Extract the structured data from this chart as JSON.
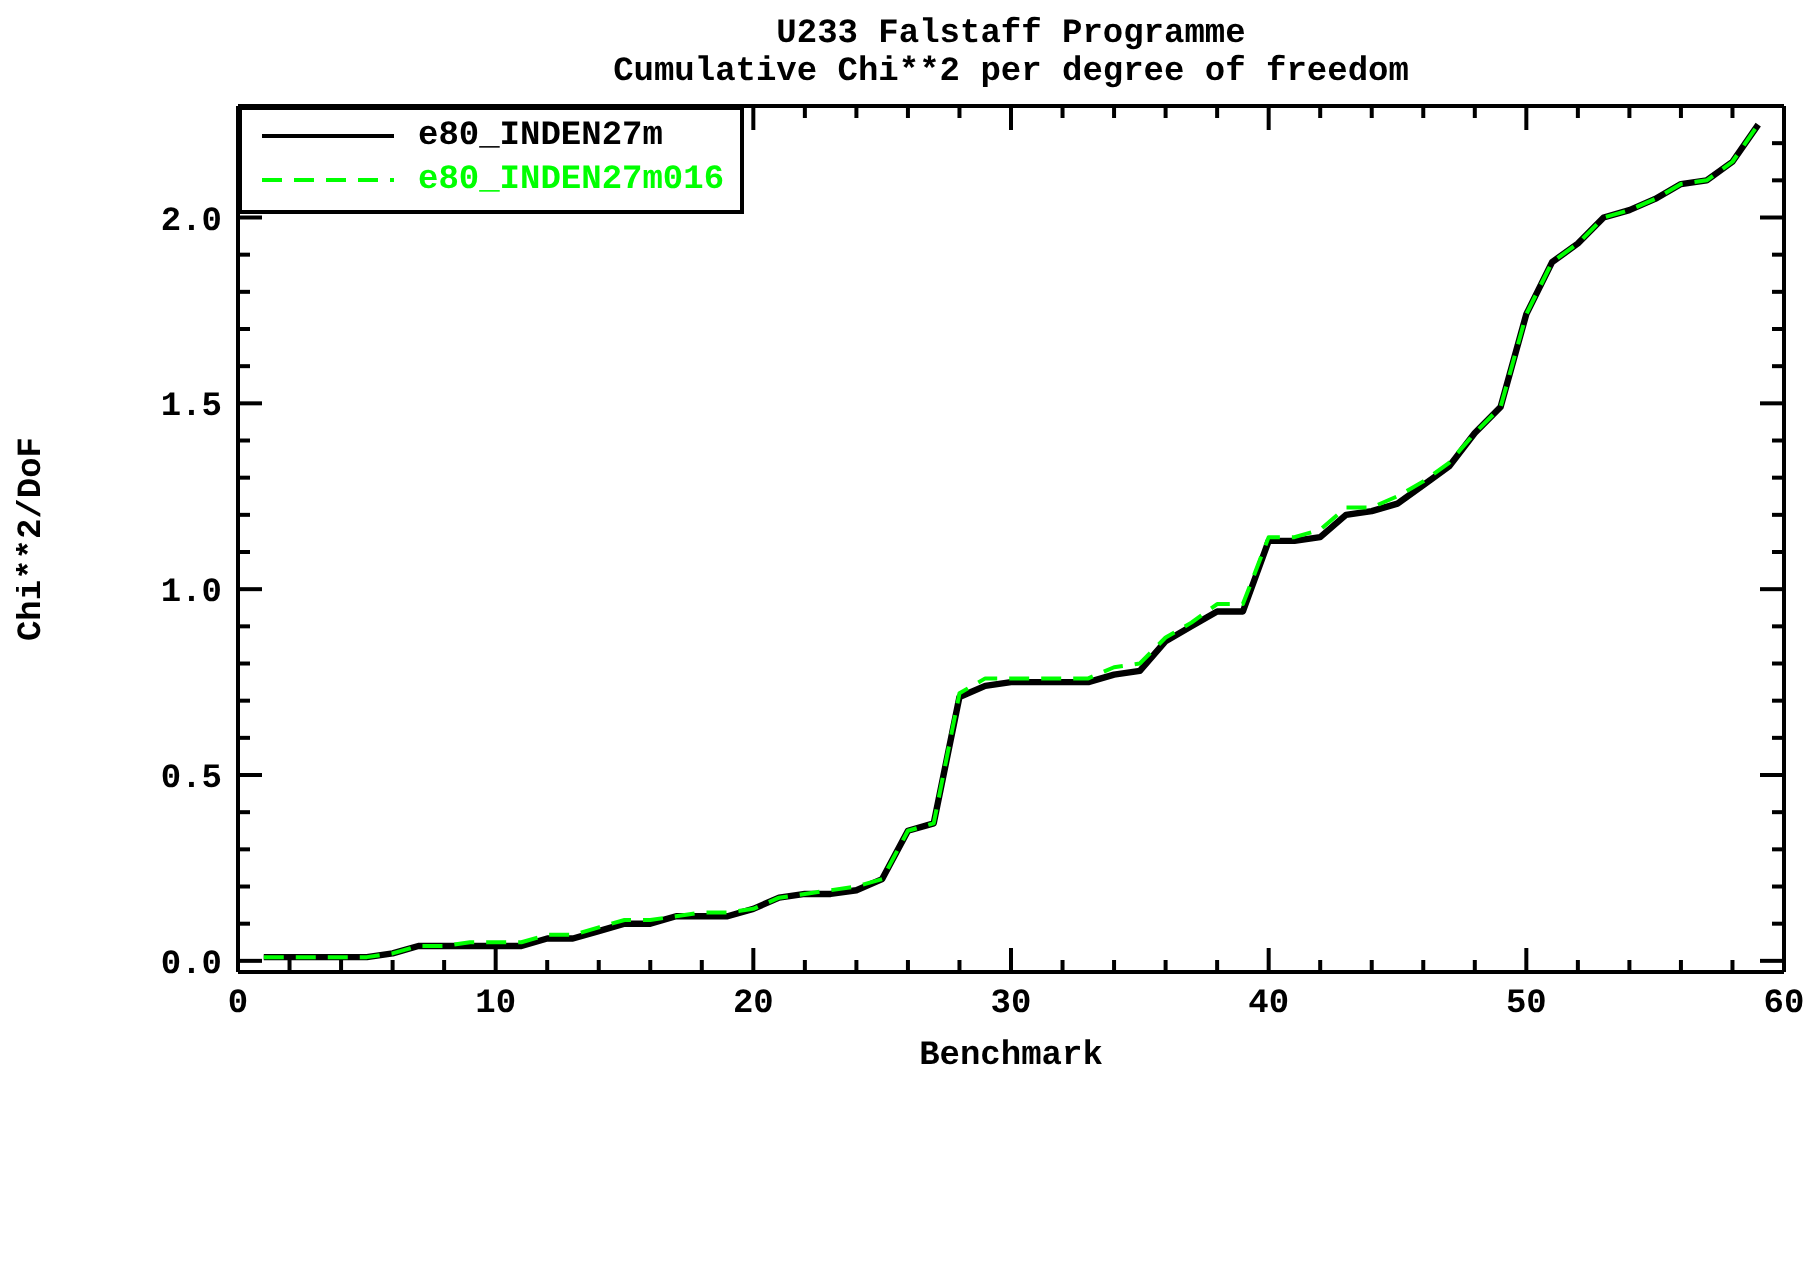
{
  "chart_data": {
    "type": "line",
    "title": "U233 Falstaff Programme",
    "subtitle": "Cumulative Chi**2 per degree of freedom",
    "xlabel": "Benchmark",
    "ylabel": "Chi**2/DoF",
    "x": [
      1,
      2,
      3,
      4,
      5,
      6,
      7,
      8,
      9,
      10,
      11,
      12,
      13,
      14,
      15,
      16,
      17,
      18,
      19,
      20,
      21,
      22,
      23,
      24,
      25,
      26,
      27,
      28,
      29,
      30,
      31,
      32,
      33,
      34,
      35,
      36,
      37,
      38,
      39,
      40,
      41,
      42,
      43,
      44,
      45,
      46,
      47,
      48,
      49,
      50,
      51,
      52,
      53,
      54,
      55,
      56,
      57,
      58,
      59
    ],
    "series": [
      {
        "name": "e80_INDEN27m",
        "color": "#000000",
        "line_style": "solid",
        "values": [
          0.01,
          0.01,
          0.01,
          0.01,
          0.01,
          0.02,
          0.04,
          0.04,
          0.04,
          0.04,
          0.04,
          0.06,
          0.06,
          0.08,
          0.1,
          0.1,
          0.12,
          0.12,
          0.12,
          0.14,
          0.17,
          0.18,
          0.18,
          0.19,
          0.22,
          0.35,
          0.37,
          0.71,
          0.74,
          0.75,
          0.75,
          0.75,
          0.75,
          0.77,
          0.78,
          0.86,
          0.9,
          0.94,
          0.94,
          1.13,
          1.13,
          1.14,
          1.2,
          1.21,
          1.23,
          1.28,
          1.33,
          1.42,
          1.49,
          1.74,
          1.88,
          1.93,
          2.0,
          2.02,
          2.05,
          2.09,
          2.1,
          2.15,
          2.25
        ]
      },
      {
        "name": "e80_INDEN27m016",
        "color": "#00ff00",
        "line_style": "dashed",
        "values": [
          0.01,
          0.01,
          0.01,
          0.01,
          0.01,
          0.02,
          0.04,
          0.04,
          0.05,
          0.05,
          0.05,
          0.07,
          0.07,
          0.09,
          0.11,
          0.11,
          0.12,
          0.13,
          0.13,
          0.14,
          0.17,
          0.18,
          0.19,
          0.2,
          0.22,
          0.35,
          0.37,
          0.72,
          0.76,
          0.76,
          0.76,
          0.76,
          0.76,
          0.79,
          0.8,
          0.87,
          0.91,
          0.96,
          0.96,
          1.14,
          1.14,
          1.16,
          1.22,
          1.22,
          1.25,
          1.29,
          1.34,
          1.42,
          1.49,
          1.74,
          1.88,
          1.93,
          2.0,
          2.02,
          2.05,
          2.09,
          2.1,
          2.15,
          2.25
        ]
      }
    ],
    "xlim": [
      0,
      60
    ],
    "ylim": [
      -0.03,
      2.3
    ],
    "xticks": [
      0,
      {
        "value": 2,
        "label": null
      },
      {
        "value": 4,
        "label": null
      },
      {
        "value": 6,
        "label": null
      },
      {
        "value": 8,
        "label": null
      },
      10,
      {
        "value": 12,
        "label": null
      },
      {
        "value": 14,
        "label": null
      },
      {
        "value": 16,
        "label": null
      },
      {
        "value": 18,
        "label": null
      },
      20,
      {
        "value": 22,
        "label": null
      },
      {
        "value": 24,
        "label": null
      },
      {
        "value": 26,
        "label": null
      },
      {
        "value": 28,
        "label": null
      },
      30,
      {
        "value": 32,
        "label": null
      },
      {
        "value": 34,
        "label": null
      },
      {
        "value": 36,
        "label": null
      },
      {
        "value": 38,
        "label": null
      },
      40,
      {
        "value": 42,
        "label": null
      },
      {
        "value": 44,
        "label": null
      },
      {
        "value": 46,
        "label": null
      },
      {
        "value": 48,
        "label": null
      },
      50,
      {
        "value": 52,
        "label": null
      },
      {
        "value": 54,
        "label": null
      },
      {
        "value": 56,
        "label": null
      },
      {
        "value": 58,
        "label": null
      },
      60
    ],
    "yticks": [
      {
        "value": 0,
        "label": "0.0"
      },
      {
        "value": 0.1,
        "label": null
      },
      {
        "value": 0.2,
        "label": null
      },
      {
        "value": 0.3,
        "label": null
      },
      {
        "value": 0.4,
        "label": null
      },
      {
        "value": 0.5,
        "label": "0.5"
      },
      {
        "value": 0.6,
        "label": null
      },
      {
        "value": 0.7,
        "label": null
      },
      {
        "value": 0.8,
        "label": null
      },
      {
        "value": 0.9,
        "label": null
      },
      {
        "value": 1,
        "label": "1.0"
      },
      {
        "value": 1.1,
        "label": null
      },
      {
        "value": 1.2,
        "label": null
      },
      {
        "value": 1.3,
        "label": null
      },
      {
        "value": 1.4,
        "label": null
      },
      {
        "value": 1.5,
        "label": "1.5"
      },
      {
        "value": 1.6,
        "label": null
      },
      {
        "value": 1.7,
        "label": null
      },
      {
        "value": 1.8,
        "label": null
      },
      {
        "value": 1.9,
        "label": null
      },
      {
        "value": 2,
        "label": "2.0"
      },
      {
        "value": 2.1,
        "label": null
      },
      {
        "value": 2.2,
        "label": null
      }
    ],
    "legend": "top left",
    "marker": "none"
  }
}
